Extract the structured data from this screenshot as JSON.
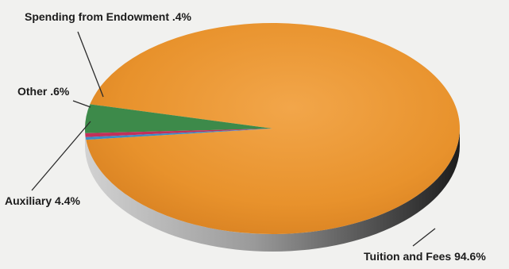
{
  "chart_data": {
    "type": "pie",
    "title": "",
    "slices": [
      {
        "label": "Tuition and Fees",
        "value": 94.6,
        "value_text": "94.6%",
        "color": "#e8922c"
      },
      {
        "label": "Auxiliary",
        "value": 4.4,
        "value_text": "4.4%",
        "color": "#3d8a4a"
      },
      {
        "label": "Other",
        "value": 0.6,
        "value_text": ".6%",
        "color": "#c2305a"
      },
      {
        "label": "Spending from Endowment",
        "value": 0.4,
        "value_text": ".4%",
        "color": "#3b8cc6"
      }
    ],
    "unit": "%",
    "legend": "none",
    "three_d": true
  }
}
